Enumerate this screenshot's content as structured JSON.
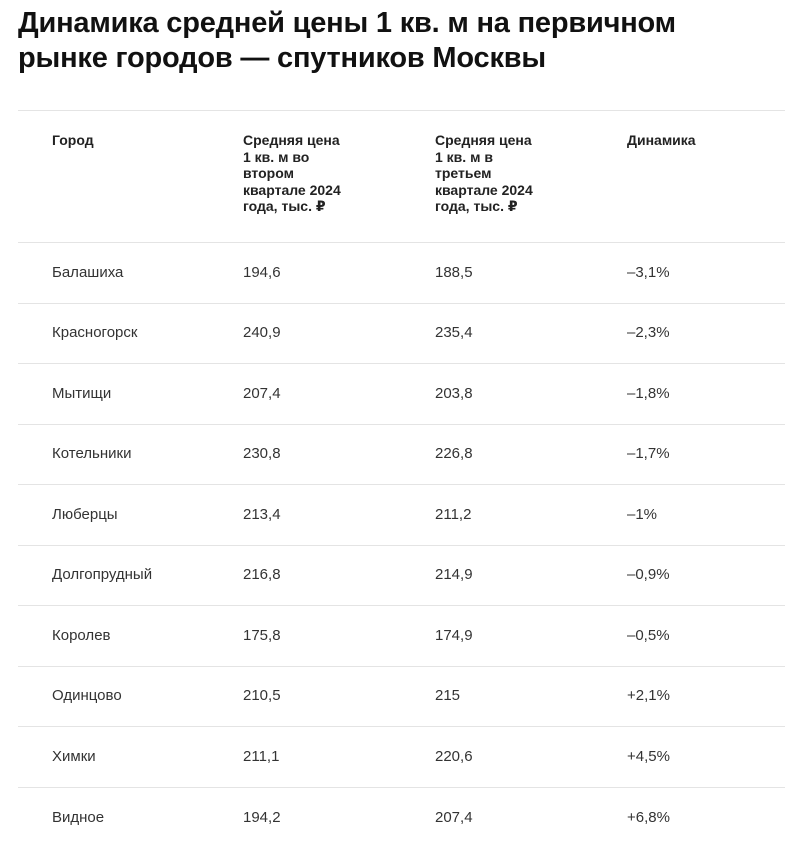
{
  "chart_data": {
    "type": "table",
    "title": "Динамика средней цены 1 кв. м на первичном\nрынке городов — спутников Москвы",
    "columns": [
      "Город",
      "Средняя цена\n1 кв. м во\nвтором\nквартале 2024\nгода, тыс. ₽",
      "Средняя цена\n1 кв. м в\nтретьем\nквартале 2024\nгода, тыс. ₽",
      "Динамика"
    ],
    "rows": [
      [
        "Балашиха",
        "194,6",
        "188,5",
        "–3,1%"
      ],
      [
        "Красногорск",
        "240,9",
        "235,4",
        "–2,3%"
      ],
      [
        "Мытищи",
        "207,4",
        "203,8",
        "–1,8%"
      ],
      [
        "Котельники",
        "230,8",
        "226,8",
        "–1,7%"
      ],
      [
        "Люберцы",
        "213,4",
        "211,2",
        "–1%"
      ],
      [
        "Долгопрудный",
        "216,8",
        "214,9",
        "–0,9%"
      ],
      [
        "Королев",
        "175,8",
        "174,9",
        "–0,5%"
      ],
      [
        "Одинцово",
        "210,5",
        "215",
        "+2,1%"
      ],
      [
        "Химки",
        "211,1",
        "220,6",
        "+4,5%"
      ],
      [
        "Видное",
        "194,2",
        "207,4",
        "+6,8%"
      ]
    ],
    "grid": "horizontal-lines"
  }
}
